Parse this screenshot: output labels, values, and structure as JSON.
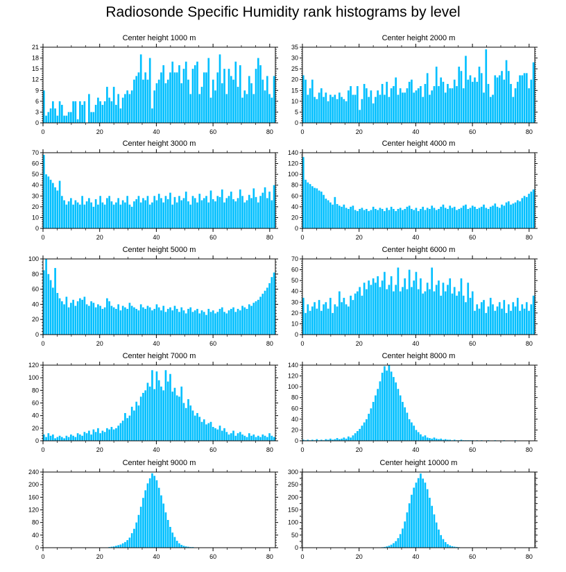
{
  "title": "Radiosonde Specific Humidity rank histograms by level",
  "colors": {
    "bar": "#00BFFF",
    "bar_edge": "#ffffff",
    "axis": "#000000",
    "background": "#ffffff"
  },
  "chart_data": [
    {
      "type": "bar",
      "title": "Center height 1000 m",
      "xlabel": "",
      "ylabel": "",
      "xlim": [
        0,
        82
      ],
      "ylim": [
        0,
        21
      ],
      "xticks": [
        0,
        20,
        40,
        60,
        80
      ],
      "yticks": [
        0,
        3,
        6,
        9,
        12,
        15,
        18,
        21
      ],
      "values": [
        9,
        2,
        3,
        4,
        6,
        4,
        2,
        6,
        5,
        2,
        2,
        3,
        3,
        6,
        6,
        1,
        6,
        5,
        6,
        0,
        8,
        3,
        3,
        5,
        7,
        6,
        5,
        6,
        10,
        7,
        6,
        10,
        5,
        8,
        4,
        7,
        8,
        9,
        8,
        9,
        12,
        13,
        14,
        19,
        12,
        14,
        12,
        18,
        4,
        9,
        11,
        12,
        14,
        16,
        11,
        12,
        14,
        17,
        14,
        14,
        16,
        11,
        15,
        17,
        12,
        8,
        15,
        16,
        17,
        8,
        10,
        14,
        14,
        18,
        7,
        12,
        9,
        14,
        19,
        11,
        15,
        8,
        15,
        13,
        12,
        17,
        10,
        16,
        7,
        9,
        8,
        13,
        11,
        8,
        15,
        18,
        16,
        12,
        9,
        13,
        8,
        7,
        13
      ]
    },
    {
      "type": "bar",
      "title": "Center height 2000 m",
      "xlabel": "",
      "ylabel": "",
      "xlim": [
        0,
        82
      ],
      "ylim": [
        0,
        35
      ],
      "xticks": [
        0,
        20,
        40,
        60,
        80
      ],
      "yticks": [
        0,
        5,
        10,
        15,
        20,
        25,
        30,
        35
      ],
      "values": [
        22,
        20,
        13,
        16,
        20,
        12,
        11,
        14,
        16,
        12,
        14,
        10,
        13,
        12,
        13,
        11,
        14,
        12,
        11,
        10,
        15,
        17,
        13,
        13,
        17,
        6,
        11,
        18,
        16,
        12,
        15,
        9,
        12,
        15,
        13,
        18,
        13,
        19,
        12,
        16,
        17,
        21,
        13,
        16,
        14,
        14,
        16,
        19,
        20,
        14,
        15,
        16,
        17,
        12,
        18,
        23,
        13,
        15,
        17,
        26,
        17,
        21,
        19,
        14,
        18,
        16,
        16,
        20,
        17,
        26,
        24,
        16,
        31,
        20,
        22,
        19,
        21,
        19,
        26,
        23,
        14,
        34,
        18,
        12,
        13,
        22,
        21,
        22,
        24,
        20,
        29,
        24,
        18,
        12,
        16,
        19,
        22,
        22,
        23,
        23,
        16,
        20,
        28
      ]
    },
    {
      "type": "bar",
      "title": "Center height 3000 m",
      "xlabel": "",
      "ylabel": "",
      "xlim": [
        0,
        82
      ],
      "ylim": [
        0,
        70
      ],
      "xticks": [
        0,
        20,
        40,
        60,
        80
      ],
      "yticks": [
        0,
        10,
        20,
        30,
        40,
        50,
        60,
        70
      ],
      "values": [
        68,
        50,
        48,
        45,
        42,
        38,
        35,
        44,
        30,
        26,
        22,
        25,
        28,
        22,
        26,
        24,
        22,
        30,
        22,
        25,
        28,
        24,
        20,
        27,
        22,
        30,
        24,
        22,
        28,
        30,
        25,
        22,
        24,
        28,
        22,
        26,
        24,
        30,
        22,
        20,
        25,
        27,
        30,
        24,
        28,
        26,
        30,
        22,
        24,
        30,
        26,
        32,
        28,
        24,
        30,
        27,
        33,
        22,
        29,
        24,
        30,
        26,
        28,
        34,
        25,
        22,
        30,
        28,
        24,
        32,
        26,
        28,
        30,
        24,
        35,
        27,
        25,
        30,
        29,
        36,
        24,
        28,
        30,
        34,
        27,
        25,
        28,
        36,
        30,
        24,
        26,
        31,
        28,
        37,
        29,
        24,
        30,
        33,
        38,
        28,
        34,
        26,
        40
      ]
    },
    {
      "type": "bar",
      "title": "Center height 4000 m",
      "xlabel": "",
      "ylabel": "",
      "xlim": [
        0,
        82
      ],
      "ylim": [
        0,
        140
      ],
      "xticks": [
        0,
        20,
        40,
        60,
        80
      ],
      "yticks": [
        0,
        20,
        40,
        60,
        80,
        100,
        120,
        140
      ],
      "values": [
        132,
        90,
        85,
        82,
        78,
        75,
        74,
        70,
        68,
        62,
        55,
        52,
        48,
        44,
        58,
        45,
        42,
        40,
        44,
        38,
        36,
        40,
        42,
        34,
        32,
        36,
        38,
        34,
        36,
        32,
        34,
        40,
        36,
        34,
        38,
        36,
        32,
        38,
        34,
        40,
        36,
        32,
        36,
        38,
        34,
        36,
        40,
        42,
        36,
        34,
        38,
        32,
        36,
        40,
        34,
        38,
        36,
        42,
        38,
        34,
        36,
        40,
        44,
        38,
        36,
        42,
        38,
        40,
        34,
        36,
        38,
        42,
        44,
        36,
        38,
        42,
        40,
        36,
        38,
        40,
        44,
        38,
        36,
        40,
        42,
        46,
        40,
        38,
        44,
        42,
        48,
        50,
        44,
        46,
        48,
        52,
        50,
        56,
        60,
        58,
        64,
        68,
        72
      ]
    },
    {
      "type": "bar",
      "title": "Center height 5000 m",
      "xlabel": "",
      "ylabel": "",
      "xlim": [
        0,
        82
      ],
      "ylim": [
        0,
        100
      ],
      "xticks": [
        0,
        20,
        40,
        60,
        80
      ],
      "yticks": [
        0,
        20,
        40,
        60,
        80,
        100
      ],
      "values": [
        85,
        100,
        80,
        72,
        62,
        88,
        55,
        48,
        44,
        40,
        50,
        36,
        42,
        46,
        38,
        44,
        48,
        46,
        50,
        40,
        38,
        44,
        42,
        36,
        40,
        38,
        34,
        36,
        48,
        44,
        38,
        36,
        34,
        40,
        32,
        38,
        36,
        34,
        42,
        38,
        36,
        34,
        32,
        40,
        36,
        34,
        38,
        36,
        32,
        34,
        40,
        36,
        32,
        38,
        30,
        34,
        36,
        32,
        38,
        34,
        30,
        36,
        32,
        28,
        34,
        36,
        30,
        32,
        34,
        28,
        32,
        30,
        26,
        34,
        30,
        32,
        28,
        30,
        34,
        36,
        30,
        28,
        32,
        34,
        36,
        30,
        34,
        32,
        38,
        36,
        34,
        40,
        38,
        42,
        44,
        46,
        50,
        54,
        58,
        62,
        68,
        76,
        82
      ]
    },
    {
      "type": "bar",
      "title": "Center height 6000 m",
      "xlabel": "",
      "ylabel": "",
      "xlim": [
        0,
        82
      ],
      "ylim": [
        0,
        70
      ],
      "xticks": [
        0,
        20,
        40,
        60,
        80
      ],
      "yticks": [
        0,
        10,
        20,
        30,
        40,
        50,
        60,
        70
      ],
      "values": [
        34,
        20,
        28,
        22,
        26,
        30,
        24,
        32,
        22,
        28,
        30,
        24,
        34,
        20,
        28,
        26,
        40,
        30,
        34,
        28,
        26,
        36,
        32,
        38,
        40,
        44,
        36,
        48,
        42,
        50,
        46,
        52,
        48,
        54,
        44,
        50,
        58,
        42,
        46,
        54,
        40,
        46,
        62,
        40,
        44,
        52,
        42,
        60,
        44,
        50,
        58,
        42,
        52,
        38,
        40,
        48,
        42,
        62,
        40,
        46,
        50,
        36,
        48,
        40,
        46,
        52,
        38,
        44,
        36,
        40,
        52,
        36,
        30,
        48,
        34,
        40,
        22,
        28,
        24,
        30,
        32,
        20,
        26,
        34,
        28,
        22,
        26,
        30,
        24,
        32,
        20,
        28,
        22,
        30,
        26,
        34,
        22,
        28,
        24,
        30,
        22,
        28,
        36
      ]
    },
    {
      "type": "bar",
      "title": "Center height 7000 m",
      "xlabel": "",
      "ylabel": "",
      "xlim": [
        0,
        82
      ],
      "ylim": [
        0,
        120
      ],
      "xticks": [
        0,
        20,
        40,
        60,
        80
      ],
      "yticks": [
        0,
        20,
        40,
        60,
        80,
        100,
        120
      ],
      "values": [
        10,
        6,
        12,
        8,
        10,
        4,
        6,
        8,
        6,
        4,
        8,
        6,
        10,
        8,
        6,
        12,
        10,
        8,
        14,
        12,
        16,
        10,
        18,
        14,
        20,
        12,
        16,
        14,
        20,
        18,
        22,
        18,
        20,
        24,
        28,
        32,
        44,
        36,
        40,
        54,
        48,
        62,
        56,
        70,
        76,
        80,
        92,
        86,
        112,
        82,
        110,
        96,
        86,
        80,
        112,
        94,
        106,
        78,
        84,
        72,
        70,
        86,
        60,
        52,
        66,
        56,
        48,
        40,
        44,
        38,
        30,
        34,
        26,
        28,
        30,
        22,
        20,
        18,
        24,
        16,
        20,
        14,
        10,
        12,
        16,
        8,
        12,
        14,
        10,
        8,
        6,
        12,
        8,
        10,
        6,
        8,
        6,
        10,
        8,
        6,
        12,
        8,
        6
      ]
    },
    {
      "type": "bar",
      "title": "Center height 8000 m",
      "xlabel": "",
      "ylabel": "",
      "xlim": [
        0,
        82
      ],
      "ylim": [
        0,
        140
      ],
      "xticks": [
        0,
        20,
        40,
        60,
        80
      ],
      "yticks": [
        0,
        20,
        40,
        60,
        80,
        100,
        120,
        140
      ],
      "values": [
        2,
        1,
        2,
        1,
        2,
        1,
        3,
        1,
        2,
        1,
        3,
        2,
        4,
        2,
        3,
        5,
        3,
        4,
        6,
        4,
        8,
        6,
        10,
        14,
        18,
        22,
        28,
        34,
        40,
        50,
        60,
        72,
        84,
        96,
        110,
        126,
        138,
        130,
        140,
        128,
        118,
        108,
        96,
        84,
        72,
        62,
        52,
        40,
        34,
        28,
        20,
        16,
        12,
        8,
        10,
        6,
        5,
        4,
        6,
        4,
        3,
        4,
        2,
        3,
        2,
        2,
        1,
        2,
        1,
        1,
        2,
        1,
        1,
        1,
        1,
        1,
        0,
        1,
        0,
        1,
        0,
        0,
        1,
        0,
        0,
        1,
        0,
        0,
        0,
        1,
        0,
        0,
        0,
        0,
        1,
        0,
        0,
        0,
        0,
        0,
        0,
        0,
        0
      ]
    },
    {
      "type": "bar",
      "title": "Center height 9000 m",
      "xlabel": "",
      "ylabel": "",
      "xlim": [
        0,
        82
      ],
      "ylim": [
        0,
        240
      ],
      "xticks": [
        0,
        20,
        40,
        60,
        80
      ],
      "yticks": [
        0,
        40,
        80,
        120,
        160,
        200,
        240
      ],
      "values": [
        0,
        0,
        0,
        0,
        0,
        0,
        0,
        0,
        0,
        0,
        0,
        0,
        0,
        0,
        0,
        0,
        0,
        0,
        0,
        0,
        0,
        0,
        0,
        0,
        0,
        0,
        0,
        0,
        1,
        2,
        3,
        4,
        6,
        8,
        10,
        14,
        18,
        24,
        32,
        46,
        60,
        80,
        104,
        130,
        158,
        182,
        204,
        220,
        236,
        228,
        214,
        190,
        166,
        140,
        112,
        88,
        66,
        48,
        34,
        22,
        14,
        9,
        6,
        4,
        3,
        2,
        2,
        1,
        1,
        1,
        0,
        1,
        0,
        0,
        0,
        0,
        0,
        0,
        0,
        0,
        0,
        0,
        0,
        0,
        0,
        0,
        0,
        0,
        0,
        0,
        0,
        0,
        0,
        0,
        0,
        0,
        0,
        0,
        0,
        0,
        0,
        0,
        0
      ]
    },
    {
      "type": "bar",
      "title": "Center height 10000 m",
      "xlabel": "",
      "ylabel": "",
      "xlim": [
        0,
        82
      ],
      "ylim": [
        0,
        300
      ],
      "xticks": [
        0,
        20,
        40,
        60,
        80
      ],
      "yticks": [
        0,
        25,
        50,
        75,
        100,
        125,
        150,
        175,
        200,
        225,
        250,
        275,
        300
      ],
      "ytick_labels": [
        "0",
        "",
        "50",
        "",
        "100",
        "",
        "150",
        "",
        "200",
        "",
        "250",
        "",
        "300"
      ],
      "values": [
        0,
        0,
        0,
        0,
        0,
        0,
        0,
        0,
        0,
        0,
        0,
        0,
        0,
        0,
        0,
        0,
        0,
        0,
        0,
        0,
        0,
        0,
        0,
        0,
        0,
        0,
        0,
        0,
        0,
        0,
        0,
        0,
        0,
        0,
        1,
        2,
        3,
        5,
        8,
        12,
        18,
        26,
        38,
        54,
        76,
        104,
        140,
        176,
        210,
        238,
        258,
        276,
        294,
        274,
        258,
        232,
        198,
        166,
        132,
        100,
        72,
        50,
        34,
        22,
        14,
        9,
        6,
        4,
        3,
        2,
        1,
        1,
        1,
        0,
        0,
        0,
        0,
        0,
        0,
        0,
        0,
        0,
        0,
        0,
        0,
        0,
        0,
        0,
        0,
        0,
        0,
        0,
        0,
        0,
        0,
        0,
        0,
        0,
        0,
        0,
        0,
        0,
        0
      ]
    }
  ]
}
